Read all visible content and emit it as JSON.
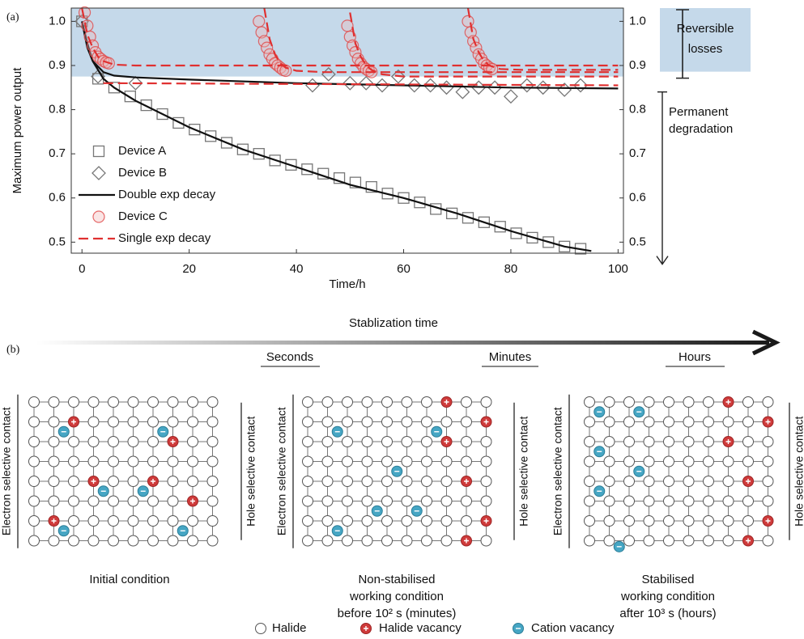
{
  "chart_data": {
    "type": "line",
    "panel_label": "(a)",
    "x_label": "Time/h",
    "y_label": "Maximum power output",
    "xlim": [
      -2,
      101
    ],
    "ylim": [
      0.475,
      1.03
    ],
    "y2lim": [
      0.475,
      1.03
    ],
    "xticks": [
      0,
      20,
      40,
      60,
      80,
      100
    ],
    "yticks": [
      0.5,
      0.6,
      0.7,
      0.8,
      0.9,
      {
        "value": 1,
        "label": "1.0"
      }
    ],
    "y2ticks": [
      0.5,
      0.6,
      0.7,
      0.8,
      0.9,
      {
        "value": 1,
        "label": "1.0"
      }
    ],
    "shade": {
      "from": 0.875,
      "color": "#c5d9ea"
    },
    "annotations": [
      {
        "text": [
          "Reversible",
          "losses"
        ],
        "range": [
          0.875,
          1.03
        ]
      },
      {
        "text": [
          "Permanent",
          "degradation"
        ],
        "range": [
          0.45,
          0.84
        ]
      }
    ],
    "legend": "lower left",
    "series": [
      {
        "name": "Device A",
        "marker": "square",
        "color": "#777777",
        "x": [
          0,
          3,
          6,
          9,
          12,
          15,
          18,
          21,
          24,
          27,
          30,
          33,
          36,
          39,
          42,
          45,
          48,
          51,
          54,
          57,
          60,
          63,
          66,
          69,
          72,
          75,
          78,
          81,
          84,
          87,
          90,
          93
        ],
        "values": [
          1.0,
          0.87,
          0.85,
          0.83,
          0.81,
          0.79,
          0.77,
          0.755,
          0.74,
          0.725,
          0.71,
          0.7,
          0.685,
          0.675,
          0.665,
          0.655,
          0.645,
          0.635,
          0.625,
          0.61,
          0.6,
          0.59,
          0.575,
          0.565,
          0.555,
          0.545,
          0.535,
          0.52,
          0.51,
          0.5,
          0.49,
          0.485
        ]
      },
      {
        "name": "Device B",
        "marker": "diamond",
        "color": "#777777",
        "x": [
          0,
          3,
          10,
          43,
          46,
          50,
          53,
          56,
          59,
          62,
          65,
          68,
          71,
          74,
          77,
          80,
          83,
          86,
          90,
          93
        ],
        "values": [
          1.0,
          0.875,
          0.86,
          0.855,
          0.88,
          0.86,
          0.86,
          0.855,
          0.875,
          0.855,
          0.855,
          0.85,
          0.84,
          0.85,
          0.85,
          0.83,
          0.855,
          0.85,
          0.845,
          0.855
        ]
      },
      {
        "name": "Double exp decay",
        "linestyle": "solid",
        "color": "#111111",
        "x": [
          0,
          1,
          2,
          4,
          6,
          10,
          20,
          30,
          40,
          50,
          60,
          70,
          80,
          90,
          95,
          null,
          0,
          1,
          2,
          4,
          6,
          10,
          20,
          40,
          60,
          80,
          100
        ],
        "values": [
          1.0,
          0.95,
          0.91,
          0.87,
          0.85,
          0.82,
          0.76,
          0.71,
          0.67,
          0.63,
          0.6,
          0.565,
          0.525,
          0.49,
          0.48,
          null,
          1.0,
          0.94,
          0.91,
          0.885,
          0.877,
          0.873,
          0.868,
          0.86,
          0.855,
          0.85,
          0.848
        ]
      },
      {
        "name": "Device C",
        "marker": "circle",
        "color": "#e04848",
        "x": [
          0.5,
          1,
          1.5,
          2,
          2.5,
          3,
          3.5,
          4,
          4.5,
          5,
          33,
          33.5,
          34,
          34.5,
          35,
          35.5,
          36,
          36.5,
          37,
          37.5,
          38,
          49.5,
          50,
          50.5,
          51,
          51.5,
          52,
          52.5,
          53,
          53.5,
          54,
          72,
          72.5,
          73,
          73.5,
          74,
          74.5,
          75,
          75.5,
          76,
          76.5
        ],
        "values": [
          1.02,
          0.99,
          0.965,
          0.945,
          0.93,
          0.92,
          0.915,
          0.91,
          0.907,
          0.905,
          1.0,
          0.975,
          0.955,
          0.94,
          0.925,
          0.915,
          0.905,
          0.9,
          0.895,
          0.89,
          0.888,
          0.99,
          0.965,
          0.945,
          0.93,
          0.915,
          0.905,
          0.897,
          0.892,
          0.888,
          0.885,
          1.0,
          0.975,
          0.955,
          0.94,
          0.925,
          0.915,
          0.905,
          0.9,
          0.895,
          0.892
        ]
      },
      {
        "name": "Single exp decay",
        "linestyle": "dashed",
        "color": "#e03030",
        "x": [
          0,
          1,
          2,
          3,
          4,
          6,
          10,
          100,
          null,
          34,
          35,
          36,
          37,
          38,
          40,
          45,
          100,
          null,
          50,
          51,
          52,
          53,
          54,
          56,
          60,
          100,
          null,
          72,
          73,
          74,
          75,
          76,
          78,
          82,
          100,
          null,
          4,
          100
        ],
        "values": [
          1.03,
          0.97,
          0.94,
          0.92,
          0.91,
          0.902,
          0.9,
          0.9,
          null,
          1.03,
          0.96,
          0.925,
          0.905,
          0.895,
          0.888,
          0.885,
          0.885,
          null,
          1.02,
          0.95,
          0.92,
          0.9,
          0.89,
          0.88,
          0.875,
          0.875,
          null,
          1.03,
          0.96,
          0.93,
          0.91,
          0.9,
          0.892,
          0.89,
          0.89,
          null,
          0.86,
          0.855
        ]
      }
    ]
  },
  "diagram": {
    "label": "(b)",
    "arrow_label": "Stablization time",
    "timescales": [
      "Seconds",
      "Minutes",
      "Hours"
    ],
    "panels": [
      {
        "left_contact": "Electron selective contact",
        "right_contact": "Hole selective contact",
        "caption": [
          "Initial condition"
        ]
      },
      {
        "left_contact": "Electron selective contact",
        "right_contact": "Hole selective contact",
        "caption": [
          "Non-stabilised",
          "working condition",
          "before 10² s (minutes)"
        ]
      },
      {
        "left_contact": "Electron selective contact",
        "right_contact": "Hole selective contact",
        "caption": [
          "Stabilised",
          "working condition",
          "after 10³ s (hours)"
        ]
      }
    ],
    "legend": [
      "Halide",
      "Halide vacancy",
      "Cation vacancy"
    ]
  }
}
